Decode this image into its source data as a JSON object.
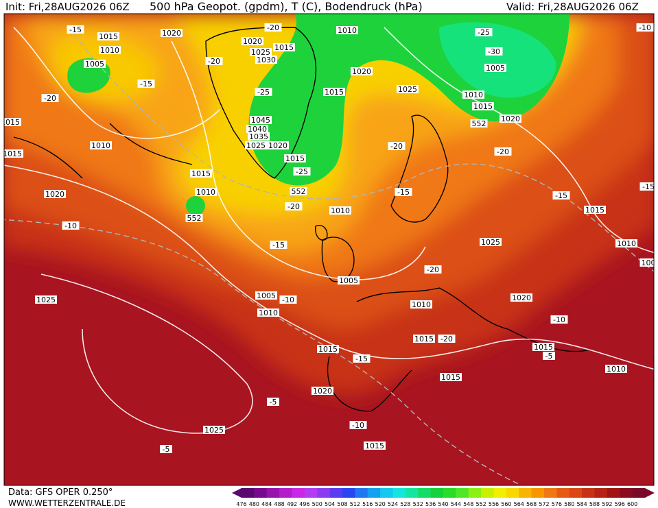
{
  "header": {
    "init": "Init: Fri,28AUG2026 06Z",
    "title": "500 hPa Geopot. (gpdm), T (C), Bodendruck (hPa)",
    "valid": "Valid: Fri,28AUG2026 06Z"
  },
  "footer": {
    "data_source": "Data: GFS OPER 0.250°",
    "website": "WWW.WETTERZENTRALE.DE"
  },
  "color_scale": {
    "labels": [
      "476",
      "480",
      "484",
      "488",
      "492",
      "496",
      "500",
      "504",
      "508",
      "512",
      "516",
      "520",
      "524",
      "528",
      "532",
      "536",
      "540",
      "544",
      "548",
      "552",
      "556",
      "560",
      "564",
      "568",
      "572",
      "576",
      "580",
      "584",
      "588",
      "592",
      "596",
      "600"
    ],
    "colors": [
      "#5a0a6e",
      "#780a8c",
      "#9614aa",
      "#b41ec8",
      "#c828e6",
      "#b43cf0",
      "#8c3cf0",
      "#5a3cf0",
      "#2846f0",
      "#1e78f0",
      "#14a0f0",
      "#14c8f0",
      "#14e6dc",
      "#14e6a0",
      "#14dc64",
      "#14d23c",
      "#28dc28",
      "#50e628",
      "#8cf014",
      "#c8f000",
      "#f0f000",
      "#f8d800",
      "#f8b400",
      "#f89600",
      "#f07814",
      "#e65a14",
      "#dc4614",
      "#c83214",
      "#b42314",
      "#a01414",
      "#8c0a1e",
      "#780a28"
    ]
  },
  "map_labels": [
    "1015",
    "1010",
    "1005",
    "-15",
    "1020",
    "-20",
    "1020",
    "1025",
    "1015",
    "1030",
    "1010",
    "-25",
    "-30",
    "1005",
    "1020",
    "1025",
    "1015",
    "1010",
    "1015",
    "1020",
    "552",
    "-20",
    "-15",
    "-20",
    "-25",
    "1045",
    "1040",
    "1035",
    "1025",
    "1020",
    "1015",
    "-25",
    "552",
    "1015",
    "1010",
    "1015",
    "-20",
    "-20",
    "1015",
    "1010",
    "552",
    "-20",
    "1010",
    "1020",
    "-15",
    "-15",
    "1015",
    "-10",
    "-15",
    "1025",
    "1010",
    "1005",
    "-20",
    "1025",
    "1005",
    "-10",
    "1010",
    "1010",
    "1020",
    "-10",
    "1015",
    "-20",
    "1015",
    "-15",
    "1015",
    "-5",
    "1015",
    "1010",
    "1020",
    "-5",
    "1025",
    "-10",
    "1015",
    "-5",
    "-10",
    "-15",
    "100"
  ]
}
